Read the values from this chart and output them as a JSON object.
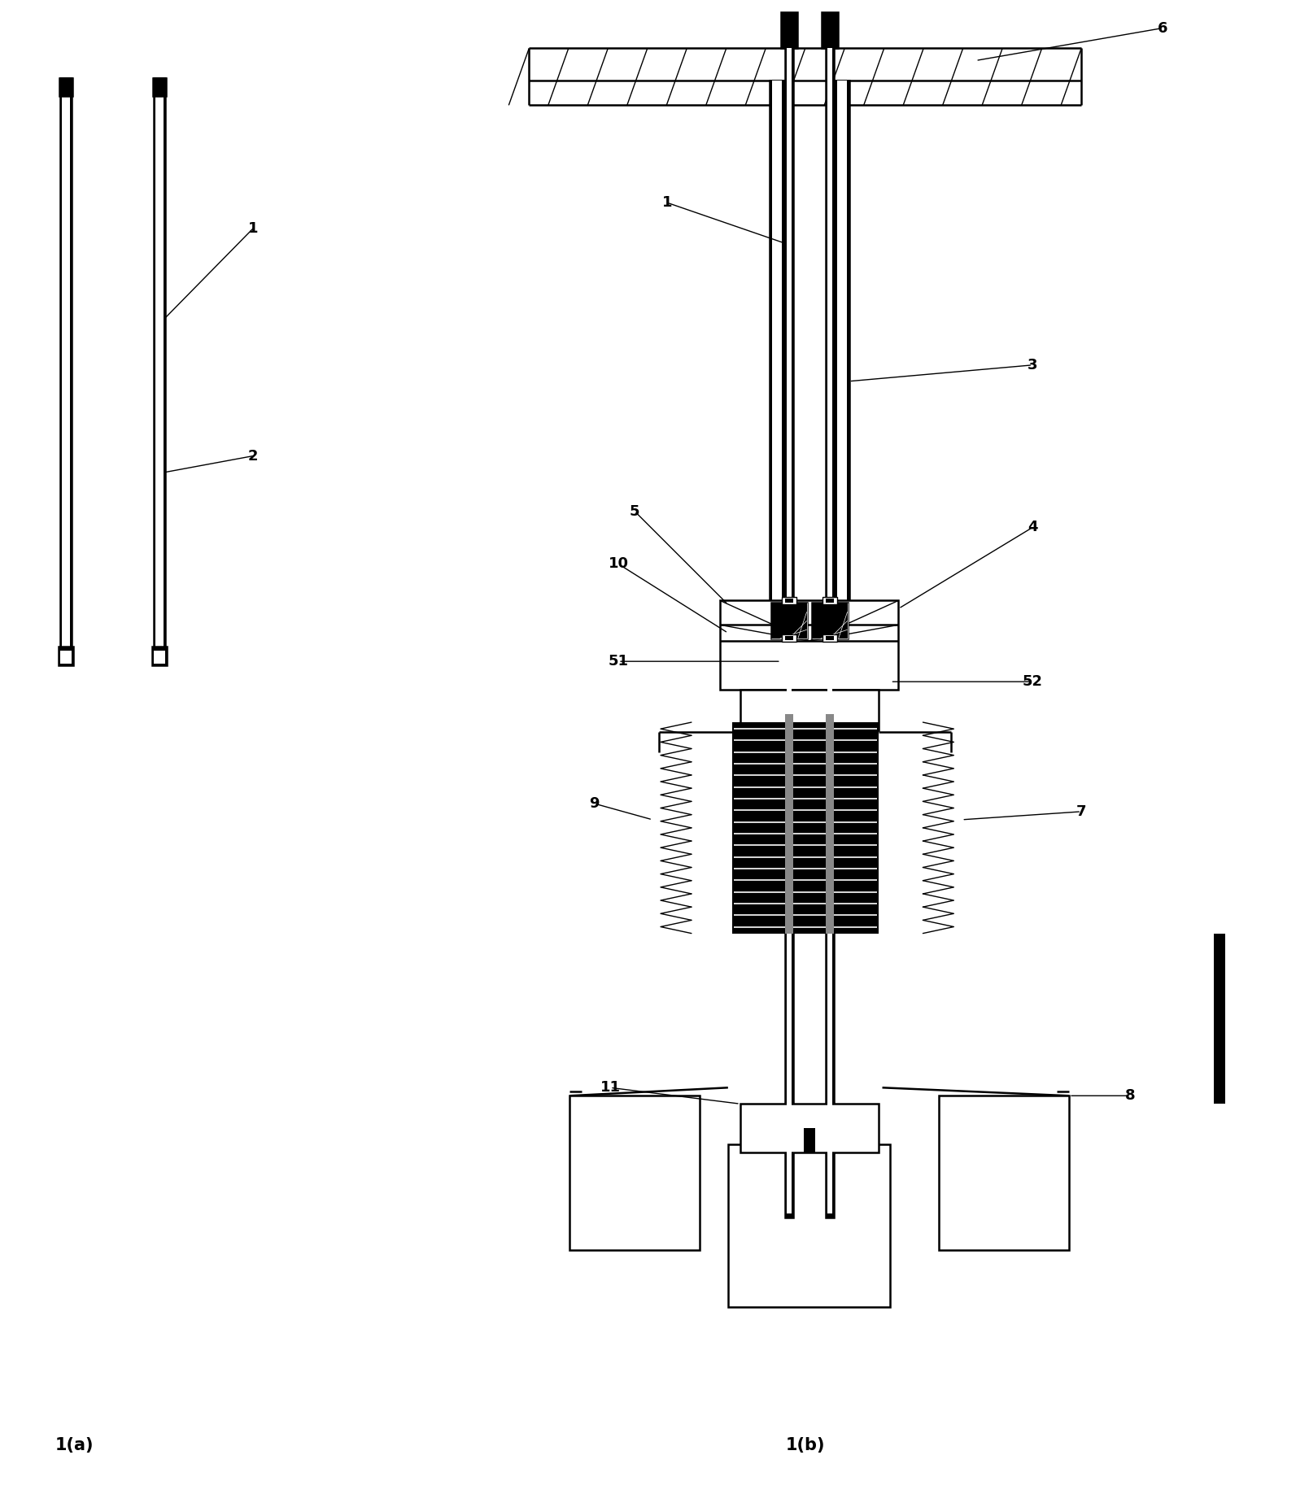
{
  "bg_color": "#ffffff",
  "line_color": "#000000",
  "label_fontsize": 13,
  "caption_fontsize": 15,
  "fig_width": 16.09,
  "fig_height": 18.48
}
